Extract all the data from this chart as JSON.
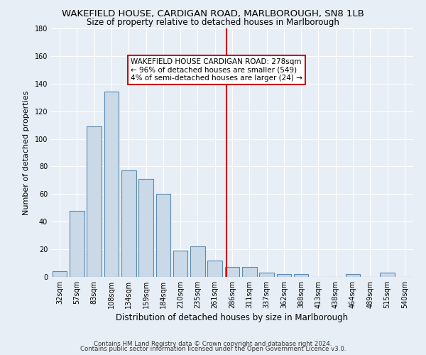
{
  "title1": "WAKEFIELD HOUSE, CARDIGAN ROAD, MARLBOROUGH, SN8 1LB",
  "title2": "Size of property relative to detached houses in Marlborough",
  "xlabel": "Distribution of detached houses by size in Marlborough",
  "ylabel": "Number of detached properties",
  "categories": [
    "32sqm",
    "57sqm",
    "83sqm",
    "108sqm",
    "134sqm",
    "159sqm",
    "184sqm",
    "210sqm",
    "235sqm",
    "261sqm",
    "286sqm",
    "311sqm",
    "337sqm",
    "362sqm",
    "388sqm",
    "413sqm",
    "438sqm",
    "464sqm",
    "489sqm",
    "515sqm",
    "540sqm"
  ],
  "values": [
    4,
    48,
    109,
    134,
    77,
    71,
    60,
    19,
    22,
    12,
    7,
    7,
    3,
    2,
    2,
    0,
    0,
    2,
    0,
    3,
    0
  ],
  "bar_color": "#c9d9e8",
  "bar_edge_color": "#5a8ab0",
  "vline_color": "#cc0000",
  "annotation_text": "WAKEFIELD HOUSE CARDIGAN ROAD: 278sqm\n← 96% of detached houses are smaller (549)\n4% of semi-detached houses are larger (24) →",
  "annotation_box_color": "#ffffff",
  "annotation_edge_color": "#cc0000",
  "annotation_fontsize": 7.5,
  "background_color": "#e8eef5",
  "grid_color": "#ffffff",
  "ylim": [
    0,
    180
  ],
  "yticks": [
    0,
    20,
    40,
    60,
    80,
    100,
    120,
    140,
    160,
    180
  ],
  "footer_text1": "Contains HM Land Registry data © Crown copyright and database right 2024.",
  "footer_text2": "Contains public sector information licensed under the Open Government Licence v3.0.",
  "title1_fontsize": 9.5,
  "title2_fontsize": 8.5,
  "xlabel_fontsize": 8.5,
  "ylabel_fontsize": 8.0,
  "tick_fontsize": 7.0,
  "footer_fontsize": 6.2
}
